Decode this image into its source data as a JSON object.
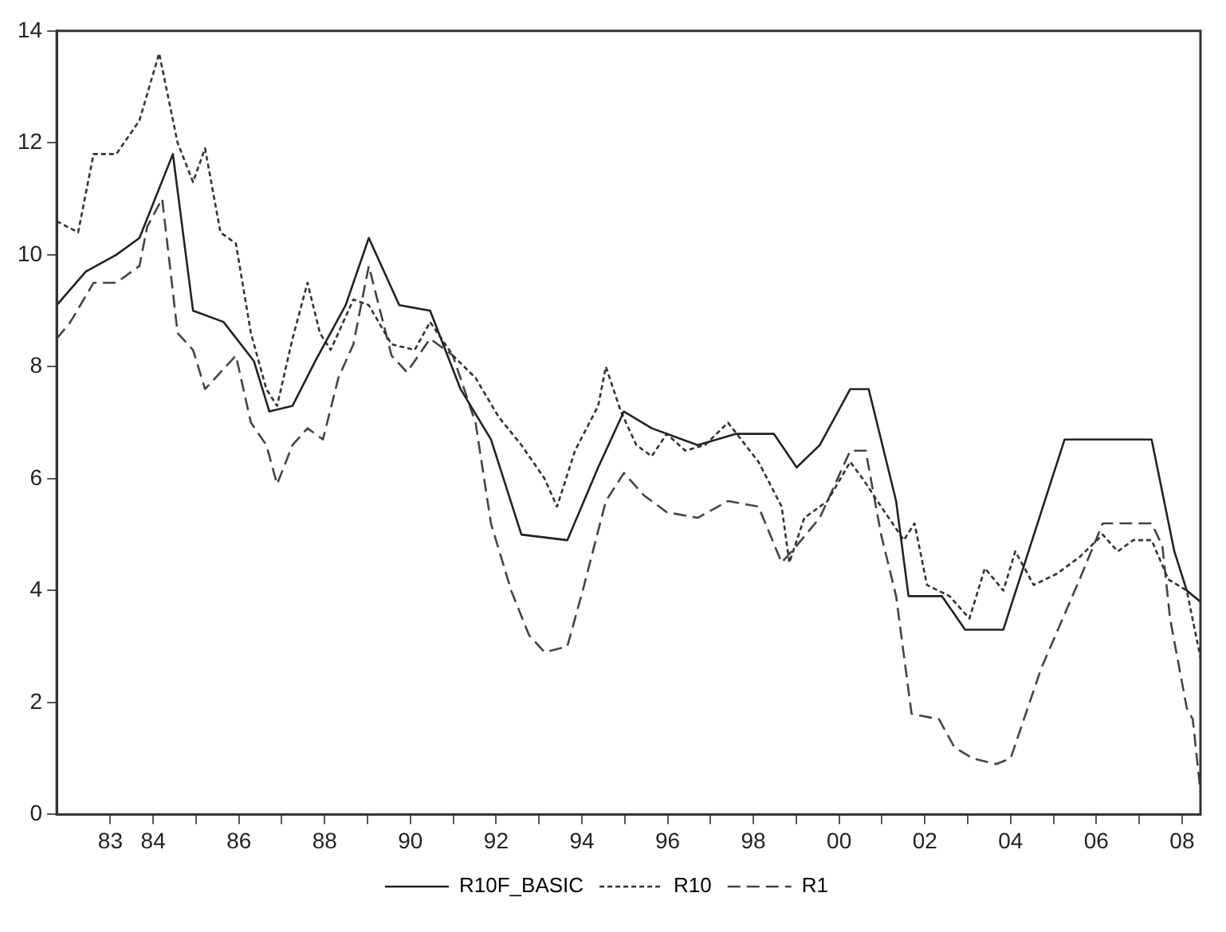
{
  "chart_data": {
    "type": "line",
    "xlim": [
      1981.75,
      2008.43
    ],
    "ylim": [
      0,
      14
    ],
    "yticks": [
      0,
      2,
      4,
      6,
      8,
      10,
      12,
      14
    ],
    "xticks": [
      {
        "value": 1983,
        "label": "83"
      },
      {
        "value": 1984,
        "label": "84"
      },
      {
        "value": 1985,
        "label": null
      },
      {
        "value": 1986,
        "label": "86"
      },
      {
        "value": 1987,
        "label": null
      },
      {
        "value": 1988,
        "label": "88"
      },
      {
        "value": 1989,
        "label": null
      },
      {
        "value": 1990,
        "label": "90"
      },
      {
        "value": 1991,
        "label": null
      },
      {
        "value": 1992,
        "label": "92"
      },
      {
        "value": 1993,
        "label": null
      },
      {
        "value": 1994,
        "label": "94"
      },
      {
        "value": 1995,
        "label": null
      },
      {
        "value": 1996,
        "label": "96"
      },
      {
        "value": 1997,
        "label": null
      },
      {
        "value": 1998,
        "label": "98"
      },
      {
        "value": 1999,
        "label": null
      },
      {
        "value": 2000,
        "label": "00"
      },
      {
        "value": 2001,
        "label": null
      },
      {
        "value": 2002,
        "label": "02"
      },
      {
        "value": 2003,
        "label": null
      },
      {
        "value": 2004,
        "label": "04"
      },
      {
        "value": 2005,
        "label": null
      },
      {
        "value": 2006,
        "label": "06"
      },
      {
        "value": 2007,
        "label": null
      },
      {
        "value": 2008,
        "label": "08"
      }
    ],
    "grid": false,
    "legend": "bottom",
    "marker": "none",
    "series": [
      {
        "name": "R10F_BASIC",
        "color": "#222222",
        "line_style": "solid",
        "x": [
          1981.75,
          1982.43,
          1983.14,
          1983.68,
          1984.46,
          1984.93,
          1985.64,
          1986.35,
          1986.71,
          1987.25,
          1987.78,
          1988.49,
          1989.03,
          1989.74,
          1990.46,
          1991.17,
          1991.88,
          1992.59,
          1993.66,
          1994.38,
          1994.98,
          1995.63,
          1996.7,
          1997.59,
          1998.48,
          1999.01,
          1999.55,
          2000.26,
          2000.69,
          2001.33,
          2001.62,
          2002.4,
          2002.94,
          2003.83,
          2005.26,
          2007.29,
          2007.82,
          2008.11,
          2008.43
        ],
        "values": [
          9.1,
          9.7,
          10.0,
          10.3,
          11.8,
          9.0,
          8.8,
          8.1,
          7.2,
          7.3,
          8.1,
          9.1,
          10.3,
          9.1,
          9.0,
          7.6,
          6.7,
          5.0,
          4.9,
          6.2,
          7.2,
          6.9,
          6.6,
          6.8,
          6.8,
          6.2,
          6.6,
          7.6,
          7.6,
          5.6,
          3.9,
          3.9,
          3.3,
          3.3,
          6.7,
          6.7,
          4.7,
          4.0,
          3.8
        ]
      },
      {
        "name": "R10",
        "color": "#333333",
        "line_style": "dotted",
        "x": [
          1981.75,
          1982.25,
          1982.61,
          1983.14,
          1983.68,
          1984.14,
          1984.57,
          1984.93,
          1985.21,
          1985.57,
          1985.93,
          1986.28,
          1986.64,
          1986.89,
          1987.25,
          1987.6,
          1987.89,
          1988.14,
          1988.67,
          1989.03,
          1989.56,
          1990.1,
          1990.46,
          1990.99,
          1991.52,
          1992.06,
          1992.59,
          1993.13,
          1993.42,
          1993.84,
          1994.38,
          1994.56,
          1994.91,
          1995.27,
          1995.63,
          1995.98,
          1996.41,
          1996.87,
          1997.41,
          1998.12,
          1998.66,
          1998.84,
          1999.19,
          1999.73,
          2000.26,
          2000.55,
          2000.98,
          2001.51,
          2001.76,
          2002.05,
          2002.58,
          2003.04,
          2003.4,
          2003.83,
          2004.11,
          2004.54,
          2005.08,
          2005.61,
          2006.15,
          2006.5,
          2006.86,
          2007.29,
          2007.68,
          2008.11,
          2008.43
        ],
        "values": [
          10.6,
          10.4,
          11.8,
          11.8,
          12.4,
          13.6,
          12.0,
          11.3,
          11.9,
          10.4,
          10.2,
          8.6,
          7.6,
          7.3,
          8.5,
          9.5,
          8.6,
          8.3,
          9.2,
          9.1,
          8.4,
          8.3,
          8.8,
          8.2,
          7.8,
          7.1,
          6.6,
          6.0,
          5.5,
          6.5,
          7.3,
          8.0,
          7.2,
          6.6,
          6.4,
          6.8,
          6.5,
          6.6,
          7.0,
          6.3,
          5.5,
          4.5,
          5.3,
          5.6,
          6.3,
          6.0,
          5.5,
          4.9,
          5.2,
          4.1,
          3.9,
          3.5,
          4.4,
          4.0,
          4.7,
          4.1,
          4.3,
          4.6,
          5.0,
          4.7,
          4.9,
          4.9,
          4.2,
          4.0,
          2.8
        ]
      },
      {
        "name": "R1",
        "color": "#444444",
        "line_style": "dashed",
        "x": [
          1981.75,
          1982.07,
          1982.61,
          1983.14,
          1983.68,
          1983.86,
          1984.21,
          1984.57,
          1984.93,
          1985.21,
          1985.57,
          1985.93,
          1986.28,
          1986.64,
          1986.89,
          1987.25,
          1987.6,
          1987.96,
          1988.32,
          1988.67,
          1989.03,
          1989.56,
          1989.92,
          1990.46,
          1990.99,
          1991.52,
          1991.88,
          1992.35,
          1992.77,
          1993.13,
          1993.66,
          1994.02,
          1994.56,
          1994.98,
          1995.45,
          1995.98,
          1996.7,
          1997.41,
          1998.12,
          1998.66,
          1999.01,
          1999.55,
          2000.26,
          2000.62,
          2000.98,
          2001.33,
          2001.69,
          2002.33,
          2002.69,
          2003.12,
          2003.66,
          2004.0,
          2004.71,
          2005.61,
          2006.15,
          2007.29,
          2007.54,
          2007.72,
          2008.11,
          2008.25,
          2008.43
        ],
        "values": [
          8.5,
          8.8,
          9.5,
          9.5,
          9.8,
          10.5,
          11.0,
          8.6,
          8.3,
          7.6,
          7.9,
          8.2,
          7.0,
          6.6,
          5.9,
          6.6,
          6.9,
          6.7,
          7.8,
          8.4,
          9.8,
          8.2,
          7.9,
          8.5,
          8.2,
          7.0,
          5.2,
          4.0,
          3.2,
          2.9,
          3.0,
          4.0,
          5.6,
          6.1,
          5.7,
          5.4,
          5.3,
          5.6,
          5.5,
          4.5,
          4.8,
          5.3,
          6.5,
          6.5,
          5.0,
          3.9,
          1.8,
          1.7,
          1.2,
          1.0,
          0.9,
          1.0,
          2.6,
          4.2,
          5.2,
          5.2,
          4.8,
          3.5,
          1.9,
          1.7,
          0.4
        ]
      }
    ]
  }
}
